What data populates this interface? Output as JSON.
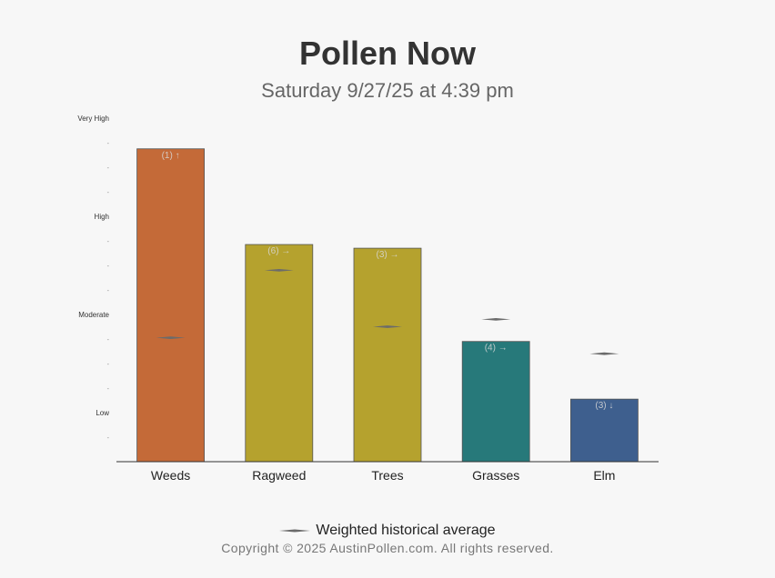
{
  "header": {
    "title": "Pollen Now",
    "subtitle": "Saturday 9/27/25 at 4:39 pm"
  },
  "legend": {
    "label": "Weighted historical average"
  },
  "footer": {
    "copyright": "Copyright © 2025 AustinPollen.com.  All rights reserved."
  },
  "colors": {
    "Weeds": "#c46a38",
    "Ragweed": "#b5a22e",
    "Trees": "#b5a22e",
    "Grasses": "#27797a",
    "Elm": "#3e5f8e",
    "axis": "#333333",
    "marker": "#6b6b6b"
  },
  "chart_data": {
    "type": "bar",
    "title": "Pollen Now",
    "subtitle": "Saturday 9/27/25 at 4:39 pm",
    "xlabel": "",
    "ylabel": "",
    "ylim": [
      0,
      13
    ],
    "y_ticks": [
      {
        "value": 1,
        "label": "-"
      },
      {
        "value": 2,
        "label": "Low"
      },
      {
        "value": 3,
        "label": "-"
      },
      {
        "value": 4,
        "label": "-"
      },
      {
        "value": 5,
        "label": "-"
      },
      {
        "value": 6,
        "label": "Moderate"
      },
      {
        "value": 7,
        "label": "-"
      },
      {
        "value": 8,
        "label": "-"
      },
      {
        "value": 9,
        "label": "-"
      },
      {
        "value": 10,
        "label": "High"
      },
      {
        "value": 11,
        "label": "-"
      },
      {
        "value": 12,
        "label": "-"
      },
      {
        "value": 13,
        "label": "-"
      },
      {
        "value": 14,
        "label": "Very High"
      }
    ],
    "categories": [
      "Weeds",
      "Ragweed",
      "Trees",
      "Grasses",
      "Elm"
    ],
    "values": [
      12.75,
      8.85,
      8.7,
      4.9,
      2.55
    ],
    "data_labels": [
      "(1) ↑",
      "(6) →",
      "(3) →",
      "(4) →",
      "(3) ↓"
    ],
    "historical_average": [
      5.05,
      7.8,
      5.5,
      5.8,
      4.4
    ],
    "grid": false,
    "legend_position": "bottom"
  }
}
